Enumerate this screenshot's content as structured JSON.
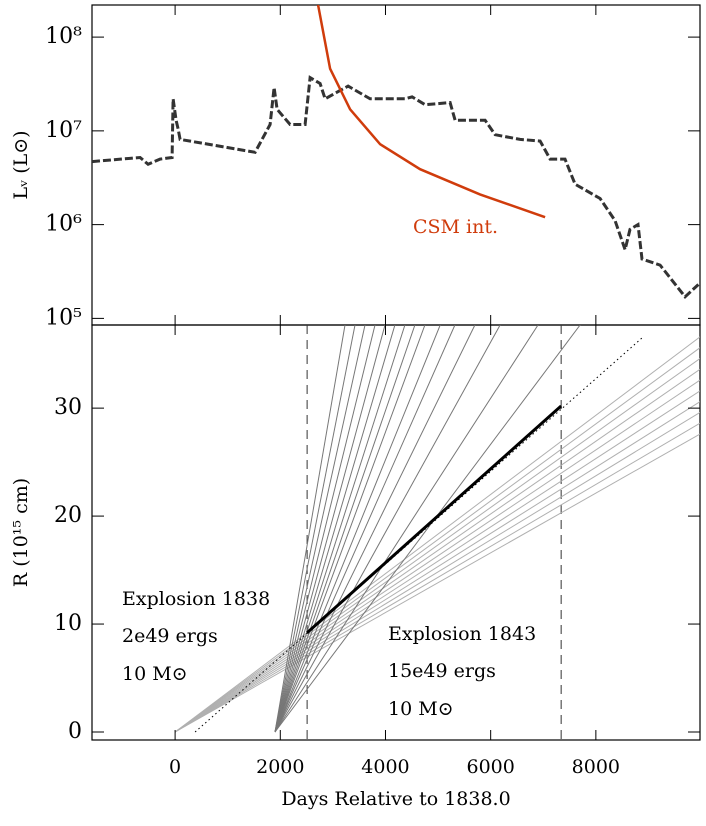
{
  "chart_data": [
    {
      "type": "line",
      "log_y": true,
      "ylabel": "Lᵥ (L⊙)",
      "xlim": [
        -1580,
        9980
      ],
      "xticks": [
        0,
        2000,
        4000,
        6000,
        8000
      ],
      "ylim": [
        85000,
        220000000
      ],
      "yticks": [
        {
          "value": 100000,
          "label": "10⁵"
        },
        {
          "value": 1000000,
          "label": "10⁶"
        },
        {
          "value": 10000000,
          "label": "10⁷"
        },
        {
          "value": 100000000,
          "label": "10⁸"
        }
      ],
      "series": [
        {
          "color": "#333333",
          "dash": true,
          "x": [
            -1580,
            -665,
            -513,
            -285,
            -57,
            -38,
            19,
            57,
            95,
            1521,
            1806,
            1882,
            1939,
            2186,
            2471,
            2567,
            2757,
            2852,
            3289,
            3707,
            4373,
            4506,
            4753,
            5228,
            5323,
            5894,
            6084,
            6559,
            6939,
            7129,
            7414,
            7605,
            8080,
            8365,
            8555,
            8650,
            8802,
            8878,
            9221,
            9696,
            9950
          ],
          "values": [
            4700000,
            5200000,
            4400000,
            5000000,
            5200000,
            22000000,
            13000000,
            10500000,
            8100000,
            5900000,
            11700000,
            29000000,
            17000000,
            11700000,
            11700000,
            37000000,
            32000000,
            22000000,
            30000000,
            22000000,
            22000000,
            23000000,
            19000000,
            20000000,
            13000000,
            13000000,
            9100000,
            8100000,
            7800000,
            5000000,
            5000000,
            2700000,
            1900000,
            1100000,
            540000,
            890000,
            1000000,
            430000,
            370000,
            170000,
            230000
          ]
        },
        {
          "name": "CSM int.",
          "color": "#d03c0c",
          "dash": false,
          "x": [
            2719,
            2947,
            3327,
            3897,
            4658,
            5798,
            7034
          ],
          "values": [
            220000000,
            46000000,
            17000000,
            7200000,
            3900000,
            2100000,
            1200000
          ]
        }
      ]
    },
    {
      "type": "line",
      "ylabel": "R (10¹⁵ cm)",
      "xlabel": "Days Relative to 1838.0",
      "xlim": [
        -1580,
        9980
      ],
      "xticks": [
        0,
        2000,
        4000,
        6000,
        8000
      ],
      "ylim": [
        -0.74,
        37.7
      ],
      "yticks": [
        0,
        10,
        20,
        30
      ],
      "vlines": [
        2510,
        7340
      ],
      "annotations": [
        "Explosion 1838",
        "2e49 ergs",
        "10 M⊙",
        "Explosion 1843",
        "15e49 ergs",
        "10 M⊙"
      ],
      "lines": [
        {
          "color": "#b0b0b0",
          "width": 1,
          "x": [
            0,
            9980
          ],
          "values": [
            0,
            27.6
          ]
        },
        {
          "color": "#b0b0b0",
          "width": 1,
          "x": [
            0,
            9980
          ],
          "values": [
            0,
            28.6
          ]
        },
        {
          "color": "#b0b0b0",
          "width": 1,
          "x": [
            0,
            9980
          ],
          "values": [
            0,
            29.6
          ]
        },
        {
          "color": "#b0b0b0",
          "width": 1,
          "x": [
            0,
            9980
          ],
          "values": [
            0,
            30.6
          ]
        },
        {
          "color": "#b0b0b0",
          "width": 1,
          "x": [
            0,
            9980
          ],
          "values": [
            0,
            31.6
          ]
        },
        {
          "color": "#b0b0b0",
          "width": 1,
          "x": [
            0,
            9980
          ],
          "values": [
            0,
            32.6
          ]
        },
        {
          "color": "#b0b0b0",
          "width": 1,
          "x": [
            0,
            9980
          ],
          "values": [
            0,
            33.6
          ]
        },
        {
          "color": "#b0b0b0",
          "width": 1,
          "x": [
            0,
            9980
          ],
          "values": [
            0,
            34.6
          ]
        },
        {
          "color": "#b0b0b0",
          "width": 1,
          "x": [
            0,
            9980
          ],
          "values": [
            0,
            35.6
          ]
        },
        {
          "color": "#b0b0b0",
          "width": 1,
          "x": [
            0,
            9980
          ],
          "values": [
            0,
            36.6
          ]
        },
        {
          "color": "#777777",
          "width": 1,
          "x": [
            1900,
            3230
          ],
          "values": [
            0,
            37.7
          ]
        },
        {
          "color": "#777777",
          "width": 1,
          "x": [
            1900,
            3420
          ],
          "values": [
            0,
            37.7
          ]
        },
        {
          "color": "#777777",
          "width": 1,
          "x": [
            1900,
            3610
          ],
          "values": [
            0,
            37.7
          ]
        },
        {
          "color": "#777777",
          "width": 1,
          "x": [
            1900,
            3800
          ],
          "values": [
            0,
            37.7
          ]
        },
        {
          "color": "#777777",
          "width": 1,
          "x": [
            1900,
            3990
          ],
          "values": [
            0,
            37.7
          ]
        },
        {
          "color": "#777777",
          "width": 1,
          "x": [
            1900,
            4180
          ],
          "values": [
            0,
            37.7
          ]
        },
        {
          "color": "#777777",
          "width": 1,
          "x": [
            1900,
            4370
          ],
          "values": [
            0,
            37.7
          ]
        },
        {
          "color": "#777777",
          "width": 1,
          "x": [
            1900,
            4560
          ],
          "values": [
            0,
            37.7
          ]
        },
        {
          "color": "#777777",
          "width": 1,
          "x": [
            1900,
            4750
          ],
          "values": [
            0,
            37.7
          ]
        },
        {
          "color": "#777777",
          "width": 1,
          "x": [
            1900,
            5040
          ],
          "values": [
            0,
            37.7
          ]
        },
        {
          "color": "#777777",
          "width": 1,
          "x": [
            1900,
            5320
          ],
          "values": [
            0,
            37.7
          ]
        },
        {
          "color": "#777777",
          "width": 1,
          "x": [
            1900,
            5700
          ],
          "values": [
            0,
            37.7
          ]
        },
        {
          "color": "#777777",
          "width": 1,
          "x": [
            1900,
            6180
          ],
          "values": [
            0,
            37.7
          ]
        },
        {
          "color": "#777777",
          "width": 1,
          "x": [
            1900,
            6900
          ],
          "values": [
            0,
            37.7
          ]
        },
        {
          "color": "#777777",
          "width": 1,
          "x": [
            1900,
            7700
          ],
          "values": [
            0,
            37.7
          ]
        },
        {
          "color": "#000000",
          "width": 3,
          "x": [
            2510,
            7340
          ],
          "values": [
            9.2,
            30.2
          ]
        },
        {
          "color": "#000000",
          "width": 1,
          "dotted": true,
          "x": [
            380,
            8900
          ],
          "values": [
            0,
            36.6
          ]
        }
      ]
    }
  ]
}
